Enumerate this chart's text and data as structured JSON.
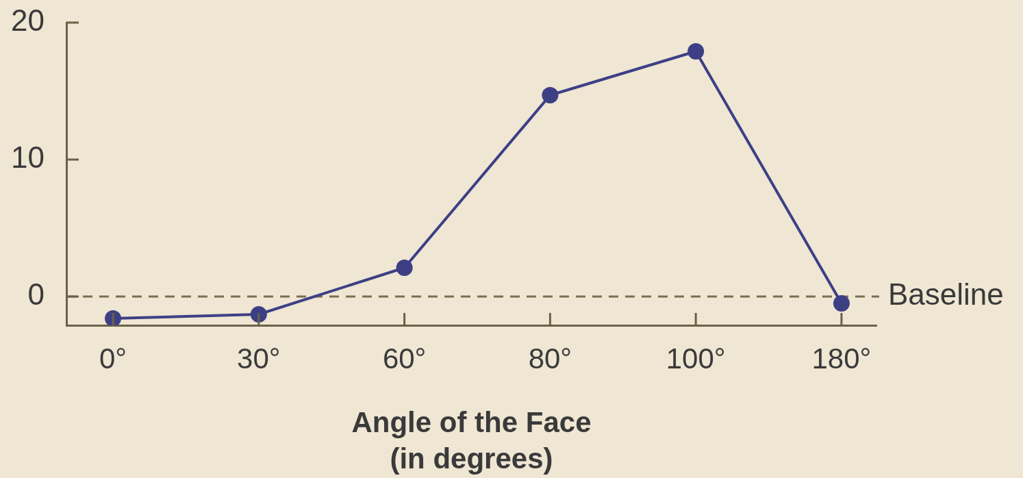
{
  "chart_data": {
    "type": "line",
    "categories": [
      "0°",
      "30°",
      "60°",
      "80°",
      "100°",
      "180°"
    ],
    "series": [
      {
        "color": "#3d3f85",
        "values": [
          -1.6,
          -1.3,
          2.1,
          14.7,
          17.9,
          -0.5
        ]
      }
    ],
    "xlabel": "Angle of the Face\n(in degrees)",
    "ylim": [
      -2.1,
      20
    ],
    "yticks": [
      0,
      10,
      20
    ],
    "marker": "circle",
    "line_style": "solid",
    "ref_lines": [
      {
        "axis": "y",
        "value": 0,
        "label": "Baseline",
        "line_style": "dashed",
        "color": "#7a6e50"
      }
    ]
  }
}
